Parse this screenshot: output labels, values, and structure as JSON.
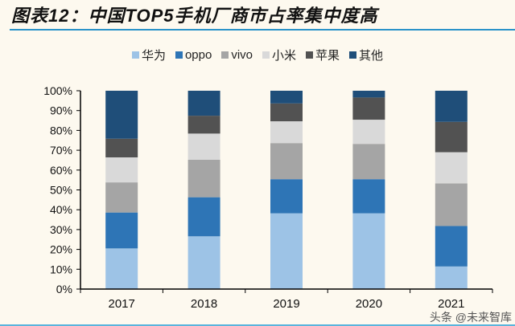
{
  "title": "图表12：中国TOP5手机厂商市占率集中度高",
  "watermark": "头条 @未来智库",
  "chart_data": {
    "type": "bar",
    "stacked": true,
    "categories": [
      "2017",
      "2018",
      "2019",
      "2020",
      "2021"
    ],
    "series": [
      {
        "name": "华为",
        "color": "#9dc3e6",
        "values": [
          20.5,
          26.6,
          38.2,
          38.2,
          11.4
        ]
      },
      {
        "name": "oppo",
        "color": "#2e75b6",
        "values": [
          18.1,
          19.7,
          17.2,
          17.2,
          20.4
        ]
      },
      {
        "name": "vivo",
        "color": "#a5a5a5",
        "values": [
          15.2,
          18.9,
          18.2,
          17.8,
          21.5
        ]
      },
      {
        "name": "小米",
        "color": "#d9d9d9",
        "values": [
          12.6,
          13.2,
          11.0,
          12.2,
          15.7
        ]
      },
      {
        "name": "苹果",
        "color": "#525252",
        "values": [
          9.4,
          9.0,
          9.0,
          11.2,
          15.3
        ]
      },
      {
        "name": "其他",
        "color": "#1f4e79",
        "values": [
          24.2,
          12.6,
          6.4,
          3.4,
          15.7
        ]
      }
    ],
    "ylim": [
      0,
      100
    ],
    "yticks": [
      "0%",
      "10%",
      "20%",
      "30%",
      "40%",
      "50%",
      "60%",
      "70%",
      "80%",
      "90%",
      "100%"
    ],
    "legend": "top",
    "grid": false
  }
}
